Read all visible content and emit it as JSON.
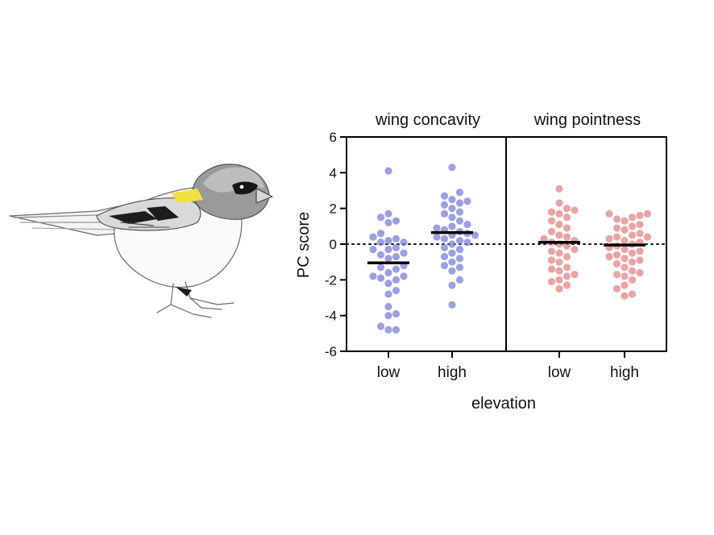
{
  "chart_data": {
    "type": "scatter",
    "ylabel": "PC score",
    "xlabel": "elevation",
    "ylim": [
      -6,
      6
    ],
    "yticks": [
      -6,
      -4,
      -2,
      0,
      2,
      4,
      6
    ],
    "reference_line": 0,
    "panels": [
      {
        "title": "wing concavity",
        "color": "#7b7fd6",
        "groups": [
          {
            "label": "low",
            "mean": -1.05,
            "values": [
              4.1,
              1.7,
              1.5,
              1.3,
              1.2,
              0.6,
              0.4,
              0.2,
              0.3,
              0.1,
              0.1,
              -0.2,
              -0.3,
              -0.3,
              -0.5,
              -0.6,
              -0.7,
              -0.8,
              -1.2,
              -1.3,
              -1.4,
              -1.6,
              -1.8,
              -1.8,
              -1.9,
              -2.0,
              -2.2,
              -2.6,
              -2.8,
              -3.5,
              -3.9,
              -4.0,
              -4.6,
              -4.8,
              -4.8
            ]
          },
          {
            "label": "high",
            "mean": 0.65,
            "values": [
              4.3,
              2.9,
              2.7,
              2.5,
              2.4,
              2.3,
              2.2,
              2.0,
              1.8,
              1.7,
              1.5,
              1.3,
              1.1,
              1.0,
              0.9,
              0.8,
              0.7,
              0.6,
              0.5,
              0.5,
              0.4,
              0.3,
              0.2,
              0.1,
              0.0,
              -0.2,
              -0.3,
              -0.5,
              -0.7,
              -0.8,
              -1.0,
              -1.2,
              -1.3,
              -1.5,
              -2.0,
              -2.3,
              -3.4
            ]
          }
        ]
      },
      {
        "title": "wing pointness",
        "color": "#e08585",
        "groups": [
          {
            "label": "low",
            "mean": 0.1,
            "values": [
              3.1,
              2.3,
              2.0,
              1.9,
              1.8,
              1.7,
              1.5,
              1.3,
              1.1,
              0.9,
              0.7,
              0.5,
              0.4,
              0.3,
              0.2,
              0.1,
              0.0,
              -0.1,
              -0.3,
              -0.4,
              -0.5,
              -0.7,
              -0.9,
              -1.0,
              -1.3,
              -1.4,
              -1.5,
              -1.7,
              -1.8,
              -2.0,
              -2.1,
              -2.3,
              -2.5
            ]
          },
          {
            "label": "high",
            "mean": -0.05,
            "values": [
              1.7,
              1.7,
              1.6,
              1.5,
              1.4,
              1.3,
              1.1,
              1.0,
              0.9,
              0.8,
              0.6,
              0.5,
              0.4,
              0.4,
              0.3,
              0.2,
              0.1,
              0.0,
              -0.1,
              -0.2,
              -0.3,
              -0.4,
              -0.5,
              -0.6,
              -0.7,
              -0.8,
              -0.9,
              -1.0,
              -1.1,
              -1.3,
              -1.5,
              -1.6,
              -1.7,
              -1.8,
              -2.0,
              -2.3,
              -2.5,
              -2.8,
              -2.9
            ]
          }
        ]
      }
    ]
  },
  "illustration": {
    "subject": "bird-illustration",
    "accent_color": "#f2e13a"
  }
}
